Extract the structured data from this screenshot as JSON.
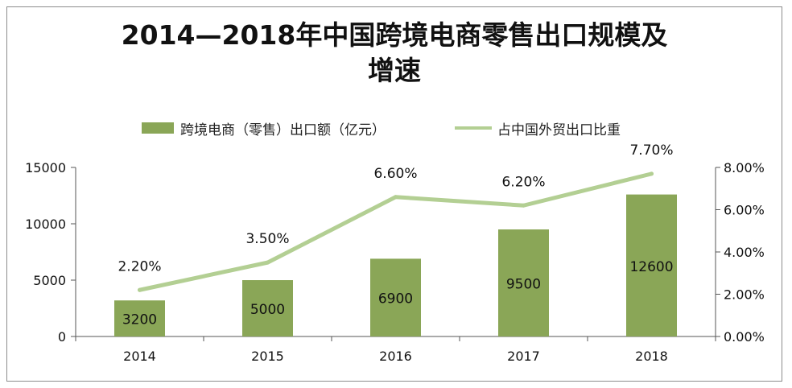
{
  "chart_data": {
    "type": "bar",
    "title_line1": "2014—2018年中国跨境电商零售出口规模及",
    "title_line2": "增速",
    "categories": [
      "2014",
      "2015",
      "2016",
      "2017",
      "2018"
    ],
    "series": [
      {
        "name": "跨境电商（零售）出口额（亿元）",
        "type": "bar",
        "axis": "left",
        "values": [
          3200,
          5000,
          6900,
          9500,
          12600
        ],
        "labels": [
          "3200",
          "5000",
          "6900",
          "9500",
          "12600"
        ],
        "color": "#8aa657"
      },
      {
        "name": "占中国外贸出口比重",
        "type": "line",
        "axis": "right",
        "values": [
          2.2,
          3.5,
          6.6,
          6.2,
          7.7
        ],
        "labels": [
          "2.20%",
          "3.50%",
          "6.60%",
          "6.20%",
          "7.70%"
        ],
        "color": "#b3cf93"
      }
    ],
    "y_left": {
      "range": [
        0,
        15000
      ],
      "ticks": [
        "0",
        "5000",
        "10000",
        "15000"
      ]
    },
    "y_right": {
      "range": [
        0,
        8
      ],
      "ticks": [
        "0.00%",
        "2.00%",
        "4.00%",
        "6.00%",
        "8.00%"
      ]
    },
    "legend_position": "top",
    "grid": false
  }
}
